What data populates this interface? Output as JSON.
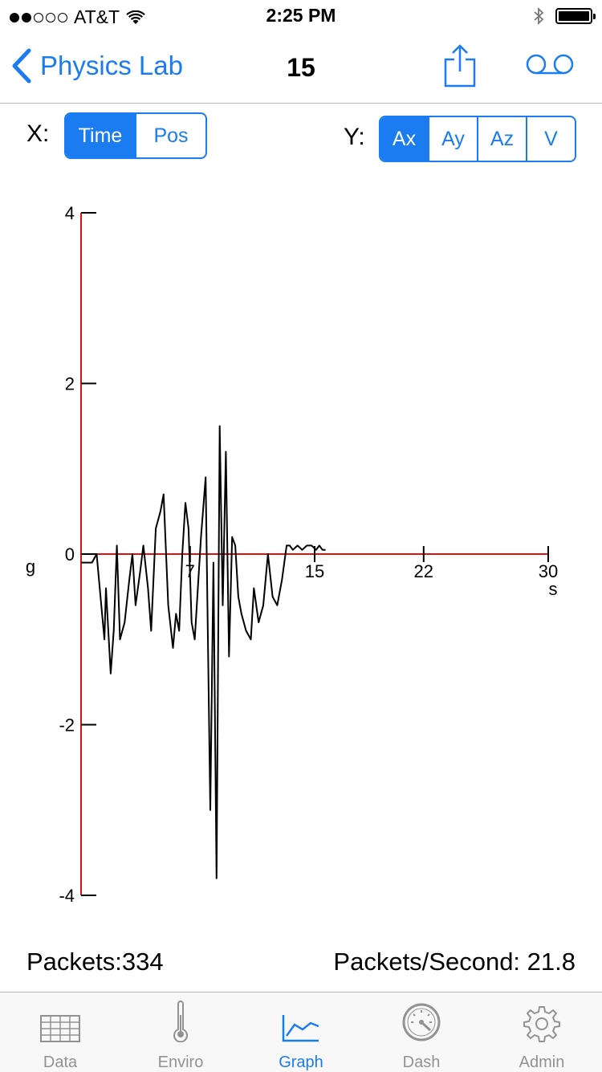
{
  "status_bar": {
    "carrier": "AT&T",
    "time": "2:25 PM",
    "signal_full": 2,
    "signal_total": 5
  },
  "nav": {
    "back_label": "Physics Lab",
    "title": "15",
    "share_icon": "share-icon",
    "voicemail_icon": "voicemail-icon",
    "accent_color": "#1a7cf0"
  },
  "x_axis_select": {
    "label": "X:",
    "options": [
      "Time",
      "Pos"
    ],
    "selected": "Time"
  },
  "y_axis_select": {
    "label": "Y:",
    "options": [
      "Ax",
      "Ay",
      "Az",
      "V"
    ],
    "selected": "Ax"
  },
  "chart_data": {
    "type": "line",
    "title": "",
    "xlabel": "s",
    "ylabel": "g",
    "xlim": [
      0,
      30
    ],
    "ylim": [
      -4,
      4
    ],
    "x_ticks": [
      7,
      15,
      22,
      30
    ],
    "y_ticks": [
      4,
      2,
      0,
      -2,
      -4
    ],
    "axis_color": "#e01010",
    "line_color": "#000000",
    "grid": false,
    "series": [
      {
        "x": [
          0,
          0.4,
          0.7,
          1.0,
          1.3,
          1.5,
          1.6,
          1.9,
          2.1,
          2.3,
          2.5,
          2.8,
          3.1,
          3.3,
          3.5,
          3.8,
          4.0,
          4.3,
          4.5,
          4.8,
          5.1,
          5.3,
          5.6,
          5.9,
          6.1,
          6.3,
          6.5,
          6.7,
          6.9,
          7.1,
          7.3,
          7.5,
          7.7,
          8.0,
          8.3,
          8.5,
          8.7,
          8.9,
          9.1,
          9.3,
          9.5,
          9.7,
          9.9,
          10.1,
          10.3,
          10.6,
          10.9,
          11.1,
          11.4,
          11.7,
          12.0,
          12.3,
          12.6,
          12.9,
          13.2,
          13.4,
          13.6,
          13.9,
          14.2,
          14.5,
          14.8,
          15.1,
          15.3,
          15.5,
          15.7
        ],
        "y": [
          -0.1,
          -0.1,
          -0.1,
          0.0,
          -0.6,
          -1.0,
          -0.4,
          -1.4,
          -0.9,
          0.1,
          -1.0,
          -0.8,
          -0.3,
          0.0,
          -0.6,
          -0.2,
          0.1,
          -0.4,
          -0.9,
          0.3,
          0.5,
          0.7,
          -0.6,
          -1.1,
          -0.7,
          -0.9,
          0.0,
          0.6,
          0.3,
          -0.8,
          -1.0,
          -0.4,
          0.2,
          0.9,
          -3.0,
          -0.1,
          -3.8,
          1.5,
          -0.6,
          1.2,
          -1.2,
          0.2,
          0.1,
          -0.5,
          -0.7,
          -0.9,
          -1.0,
          -0.4,
          -0.8,
          -0.6,
          0.0,
          -0.5,
          -0.6,
          -0.3,
          0.1,
          0.1,
          0.05,
          0.1,
          0.05,
          0.1,
          0.1,
          0.05,
          0.1,
          0.05,
          0.05
        ]
      }
    ]
  },
  "stats": {
    "packets": "Packets:334",
    "rate": "Packets/Second: 21.8"
  },
  "tabs": [
    {
      "label": "Data",
      "icon": "table-icon",
      "active": false
    },
    {
      "label": "Enviro",
      "icon": "thermometer-icon",
      "active": false
    },
    {
      "label": "Graph",
      "icon": "graph-icon",
      "active": true
    },
    {
      "label": "Dash",
      "icon": "gauge-icon",
      "active": false
    },
    {
      "label": "Admin",
      "icon": "gear-icon",
      "active": false
    }
  ]
}
